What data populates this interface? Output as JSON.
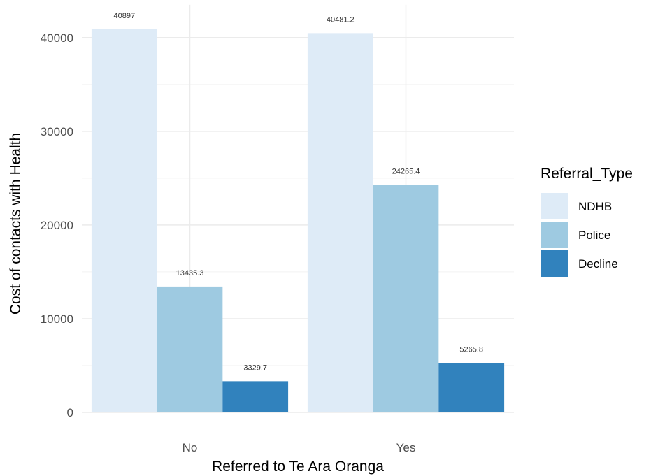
{
  "chart_data": {
    "type": "bar",
    "xlabel": "Referred to Te Ara Oranga",
    "ylabel": "Cost of contacts with Health",
    "categories": [
      "No",
      "Yes"
    ],
    "ylim": [
      0,
      43500
    ],
    "yticks": [
      0,
      10000,
      20000,
      30000,
      40000
    ],
    "grid": true,
    "legend_title": "Referral_Type",
    "legend_position": "right",
    "series": [
      {
        "name": "NDHB",
        "color": "#deebf7",
        "values": [
          40897,
          40481.2
        ],
        "labels": [
          "40897",
          "40481.2"
        ]
      },
      {
        "name": "Police",
        "color": "#9ecae1",
        "values": [
          13435.3,
          24265.4
        ],
        "labels": [
          "13435.3",
          "24265.4"
        ]
      },
      {
        "name": "Decline",
        "color": "#3182bd",
        "values": [
          3329.7,
          5265.8
        ],
        "labels": [
          "3329.7",
          "5265.8"
        ]
      }
    ]
  }
}
